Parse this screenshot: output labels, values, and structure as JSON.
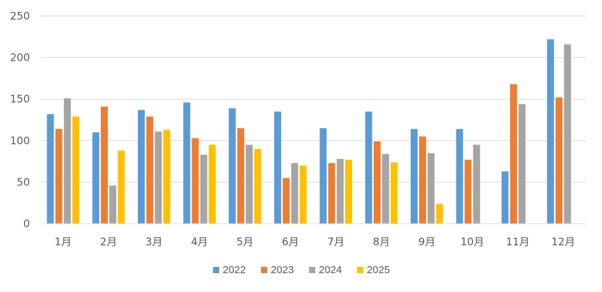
{
  "chart_data": {
    "type": "bar",
    "title": "",
    "xlabel": "",
    "ylabel": "",
    "categories": [
      "1月",
      "2月",
      "3月",
      "4月",
      "5月",
      "6月",
      "7月",
      "8月",
      "9月",
      "10月",
      "11月",
      "12月"
    ],
    "ylim": [
      0,
      250
    ],
    "yticks": [
      "0",
      "50",
      "100",
      "150",
      "200",
      "250"
    ],
    "grid": true,
    "legend_position": "bottom",
    "series": [
      {
        "name": "2022",
        "color": "#5b9bd5",
        "values": [
          132,
          110,
          137,
          146,
          139,
          135,
          115,
          135,
          114,
          114,
          63,
          222
        ]
      },
      {
        "name": "2023",
        "color": "#ed7d31",
        "values": [
          114,
          141,
          129,
          103,
          115,
          55,
          73,
          99,
          105,
          77,
          168,
          152
        ]
      },
      {
        "name": "2024",
        "color": "#a5a5a5",
        "values": [
          151,
          46,
          111,
          83,
          95,
          73,
          78,
          84,
          85,
          95,
          144,
          216
        ]
      },
      {
        "name": "2025",
        "color": "#ffc000",
        "values": [
          129,
          88,
          113,
          95,
          90,
          70,
          77,
          74,
          24,
          null,
          null,
          null
        ]
      }
    ]
  }
}
